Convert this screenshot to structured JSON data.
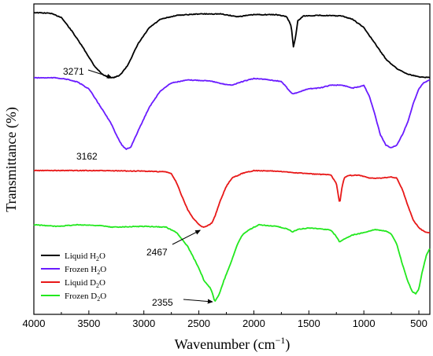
{
  "chart_data": {
    "type": "line",
    "title": "",
    "xlabel_main": "Wavenumber (cm",
    "xlabel_sup": "−1",
    "xlabel_close": ")",
    "ylabel": "Transmittance (%)",
    "xlim": [
      4000,
      400
    ],
    "x_reversed": true,
    "x_ticks": [
      4000,
      3500,
      3000,
      2500,
      2000,
      1500,
      1000,
      500
    ],
    "x_tick_labels": [
      "4000",
      "3500",
      "3000",
      "2500",
      "2000",
      "1500",
      "1000",
      "500"
    ],
    "y_tick_labels_shown": false,
    "grid": false,
    "legend_position": "bottom-left",
    "series": [
      {
        "name_main": "Liquid H",
        "name_sub": "2",
        "name_end": "O",
        "color": "#000000",
        "points": [
          [
            4000,
            0.0
          ],
          [
            3850,
            0.01
          ],
          [
            3750,
            0.07
          ],
          [
            3650,
            0.28
          ],
          [
            3550,
            0.52
          ],
          [
            3450,
            0.78
          ],
          [
            3380,
            0.9
          ],
          [
            3320,
            0.95
          ],
          [
            3271,
            0.95
          ],
          [
            3220,
            0.92
          ],
          [
            3150,
            0.78
          ],
          [
            3050,
            0.45
          ],
          [
            2950,
            0.22
          ],
          [
            2850,
            0.1
          ],
          [
            2700,
            0.04
          ],
          [
            2500,
            0.02
          ],
          [
            2300,
            0.02
          ],
          [
            2150,
            0.06
          ],
          [
            2000,
            0.03
          ],
          [
            1800,
            0.03
          ],
          [
            1700,
            0.06
          ],
          [
            1660,
            0.2
          ],
          [
            1640,
            0.5
          ],
          [
            1620,
            0.35
          ],
          [
            1600,
            0.12
          ],
          [
            1550,
            0.05
          ],
          [
            1400,
            0.04
          ],
          [
            1200,
            0.05
          ],
          [
            1100,
            0.1
          ],
          [
            1000,
            0.22
          ],
          [
            900,
            0.45
          ],
          [
            800,
            0.68
          ],
          [
            700,
            0.82
          ],
          [
            600,
            0.9
          ],
          [
            500,
            0.94
          ],
          [
            400,
            0.95
          ]
        ]
      },
      {
        "name_main": "Frozen H",
        "name_sub": "2",
        "name_end": "O",
        "color": "#6a1bff",
        "points": [
          [
            4000,
            0.0
          ],
          [
            3800,
            0.0
          ],
          [
            3700,
            0.02
          ],
          [
            3600,
            0.06
          ],
          [
            3500,
            0.15
          ],
          [
            3400,
            0.38
          ],
          [
            3300,
            0.62
          ],
          [
            3250,
            0.78
          ],
          [
            3200,
            0.92
          ],
          [
            3162,
            0.98
          ],
          [
            3120,
            0.95
          ],
          [
            3050,
            0.72
          ],
          [
            2950,
            0.4
          ],
          [
            2850,
            0.18
          ],
          [
            2750,
            0.07
          ],
          [
            2600,
            0.03
          ],
          [
            2400,
            0.04
          ],
          [
            2300,
            0.08
          ],
          [
            2200,
            0.1
          ],
          [
            2100,
            0.05
          ],
          [
            2000,
            0.01
          ],
          [
            1900,
            0.02
          ],
          [
            1750,
            0.05
          ],
          [
            1650,
            0.22
          ],
          [
            1600,
            0.2
          ],
          [
            1500,
            0.15
          ],
          [
            1400,
            0.14
          ],
          [
            1300,
            0.1
          ],
          [
            1200,
            0.1
          ],
          [
            1100,
            0.14
          ],
          [
            1040,
            0.12
          ],
          [
            1000,
            0.1
          ],
          [
            950,
            0.25
          ],
          [
            900,
            0.5
          ],
          [
            850,
            0.78
          ],
          [
            800,
            0.92
          ],
          [
            750,
            0.96
          ],
          [
            700,
            0.92
          ],
          [
            650,
            0.78
          ],
          [
            600,
            0.6
          ],
          [
            550,
            0.35
          ],
          [
            500,
            0.15
          ],
          [
            450,
            0.06
          ],
          [
            400,
            0.03
          ]
        ]
      },
      {
        "name_main": "Liquid D",
        "name_sub": "2",
        "name_end": "O",
        "color": "#e81818",
        "points": [
          [
            4000,
            0.0
          ],
          [
            3500,
            0.0
          ],
          [
            3000,
            0.01
          ],
          [
            2800,
            0.02
          ],
          [
            2750,
            0.05
          ],
          [
            2700,
            0.2
          ],
          [
            2650,
            0.42
          ],
          [
            2600,
            0.62
          ],
          [
            2550,
            0.75
          ],
          [
            2500,
            0.85
          ],
          [
            2467,
            0.89
          ],
          [
            2420,
            0.87
          ],
          [
            2380,
            0.82
          ],
          [
            2350,
            0.7
          ],
          [
            2300,
            0.45
          ],
          [
            2250,
            0.25
          ],
          [
            2200,
            0.12
          ],
          [
            2100,
            0.04
          ],
          [
            2000,
            0.0
          ],
          [
            1800,
            0.01
          ],
          [
            1500,
            0.05
          ],
          [
            1300,
            0.07
          ],
          [
            1250,
            0.2
          ],
          [
            1220,
            0.52
          ],
          [
            1200,
            0.28
          ],
          [
            1180,
            0.12
          ],
          [
            1150,
            0.08
          ],
          [
            1050,
            0.07
          ],
          [
            950,
            0.12
          ],
          [
            850,
            0.12
          ],
          [
            750,
            0.1
          ],
          [
            700,
            0.12
          ],
          [
            650,
            0.3
          ],
          [
            600,
            0.55
          ],
          [
            550,
            0.78
          ],
          [
            500,
            0.9
          ],
          [
            450,
            0.96
          ],
          [
            400,
            0.98
          ]
        ]
      },
      {
        "name_main": "Frozen D",
        "name_sub": "2",
        "name_end": "O",
        "color": "#22e81e",
        "points": [
          [
            4000,
            0.0
          ],
          [
            3800,
            0.02
          ],
          [
            3600,
            0.0
          ],
          [
            3400,
            0.01
          ],
          [
            3300,
            0.03
          ],
          [
            3000,
            0.02
          ],
          [
            2800,
            0.03
          ],
          [
            2700,
            0.1
          ],
          [
            2600,
            0.28
          ],
          [
            2500,
            0.55
          ],
          [
            2450,
            0.72
          ],
          [
            2400,
            0.8
          ],
          [
            2380,
            0.85
          ],
          [
            2355,
            0.98
          ],
          [
            2320,
            0.9
          ],
          [
            2270,
            0.7
          ],
          [
            2200,
            0.45
          ],
          [
            2150,
            0.25
          ],
          [
            2100,
            0.12
          ],
          [
            2050,
            0.07
          ],
          [
            2000,
            0.03
          ],
          [
            1950,
            0.0
          ],
          [
            1800,
            0.02
          ],
          [
            1700,
            0.05
          ],
          [
            1650,
            0.09
          ],
          [
            1600,
            0.06
          ],
          [
            1500,
            0.04
          ],
          [
            1400,
            0.05
          ],
          [
            1300,
            0.07
          ],
          [
            1250,
            0.15
          ],
          [
            1220,
            0.22
          ],
          [
            1180,
            0.18
          ],
          [
            1100,
            0.13
          ],
          [
            1000,
            0.1
          ],
          [
            900,
            0.06
          ],
          [
            800,
            0.08
          ],
          [
            750,
            0.12
          ],
          [
            700,
            0.25
          ],
          [
            650,
            0.5
          ],
          [
            600,
            0.72
          ],
          [
            560,
            0.85
          ],
          [
            530,
            0.88
          ],
          [
            500,
            0.82
          ],
          [
            470,
            0.6
          ],
          [
            430,
            0.38
          ],
          [
            400,
            0.3
          ]
        ]
      }
    ],
    "annotations": [
      {
        "label": "3271",
        "series": 0,
        "target_x": 3271
      },
      {
        "label": "3162",
        "series": 1,
        "target_x": 3162
      },
      {
        "label": "2467",
        "series": 2,
        "target_x": 2467
      },
      {
        "label": "2355",
        "series": 3,
        "target_x": 2355
      }
    ]
  }
}
